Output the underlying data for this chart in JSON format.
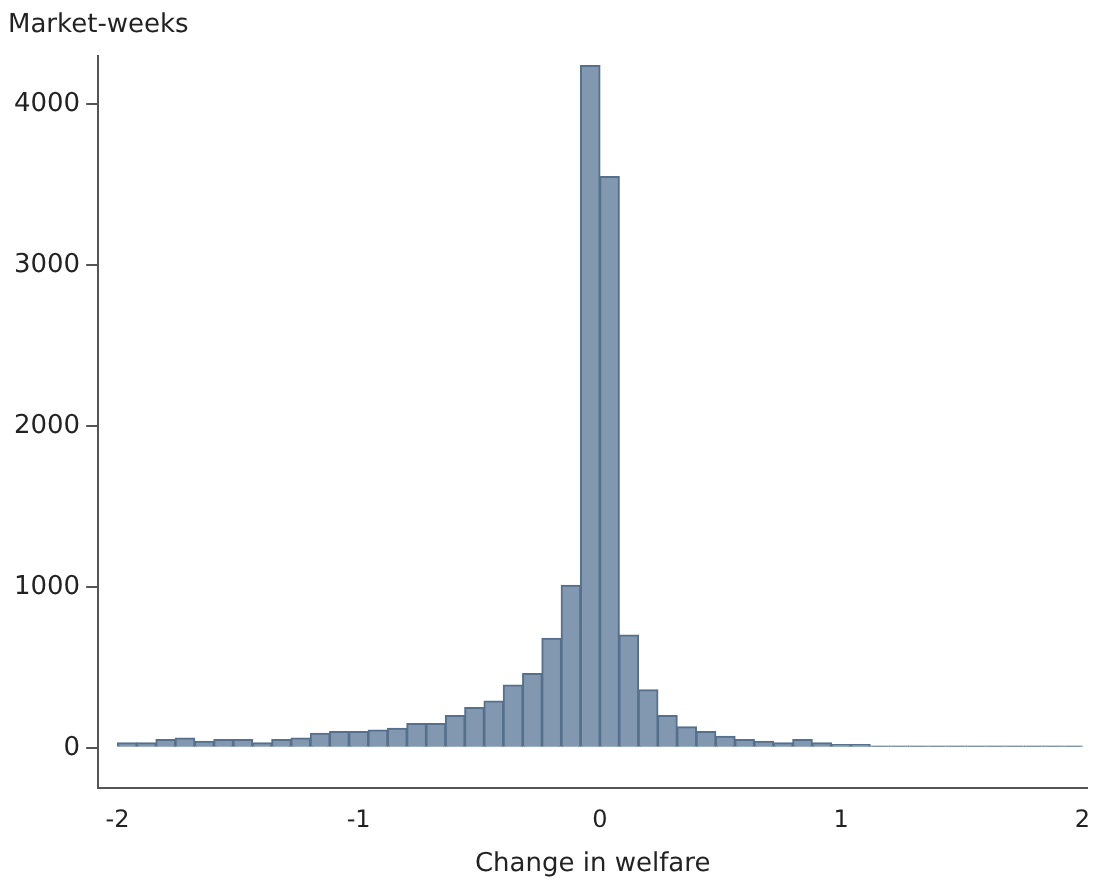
{
  "chart_data": {
    "type": "histogram",
    "ylabel": "Market-weeks",
    "xlabel": "Change in welfare",
    "bins": [
      -2,
      -1.92,
      -1.84,
      -1.76,
      -1.68,
      -1.6,
      -1.52,
      -1.44,
      -1.36,
      -1.28,
      -1.2,
      -1.12,
      -1.04,
      -0.96,
      -0.88,
      -0.8,
      -0.72,
      -0.64,
      -0.56,
      -0.48,
      -0.4,
      -0.32,
      -0.24,
      -0.16,
      -0.08,
      0,
      0.08,
      0.16,
      0.24,
      0.32,
      0.4,
      0.48,
      0.56,
      0.64,
      0.72,
      0.8,
      0.88,
      0.96,
      1.04,
      1.12,
      1.2,
      1.28,
      1.36,
      1.44,
      1.52,
      1.6,
      1.68,
      1.76,
      1.84,
      1.92,
      2
    ],
    "values": [
      30,
      30,
      50,
      60,
      40,
      50,
      50,
      30,
      50,
      60,
      90,
      100,
      100,
      110,
      120,
      150,
      150,
      200,
      250,
      290,
      390,
      460,
      680,
      1010,
      4240,
      3550,
      700,
      360,
      200,
      130,
      100,
      70,
      50,
      40,
      30,
      50,
      30,
      20,
      20,
      10,
      10,
      10,
      10,
      10,
      10,
      10,
      10,
      10,
      10,
      10
    ],
    "color": "#8198b0",
    "xlim": [
      -2.08,
      2.02
    ],
    "xticks": [
      -2,
      -1,
      0,
      1,
      2
    ],
    "ylim": [
      -250,
      4300
    ],
    "yticks": [
      0,
      1000,
      2000,
      3000,
      4000
    ],
    "grid": false,
    "legend": false
  }
}
